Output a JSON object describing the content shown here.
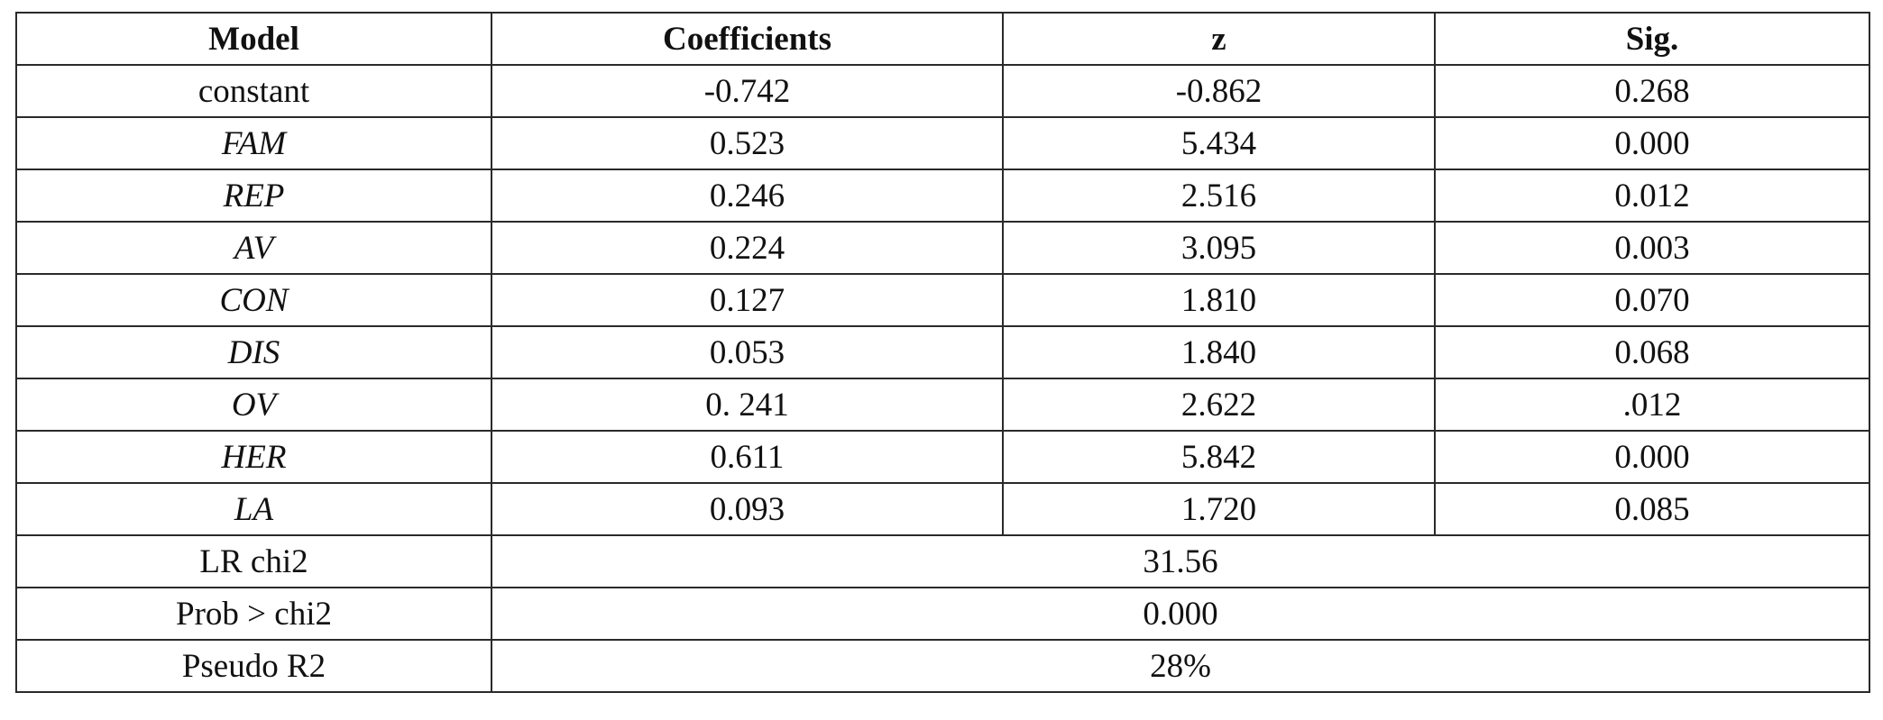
{
  "table": {
    "headers": [
      "Model",
      "Coefficients",
      "z",
      "Sig."
    ],
    "rows": [
      {
        "model": "constant",
        "coef": "-0.742",
        "z": "-0.862",
        "sig": "0.268"
      },
      {
        "model": "FAM",
        "coef": "0.523",
        "z": "5.434",
        "sig": "0.000"
      },
      {
        "model": "REP",
        "coef": "0.246",
        "z": "2.516",
        "sig": "0.012"
      },
      {
        "model": "AV",
        "coef": "0.224",
        "z": "3.095",
        "sig": "0.003"
      },
      {
        "model": "CON",
        "coef": "0.127",
        "z": "1.810",
        "sig": "0.070"
      },
      {
        "model": "DIS",
        "coef": "0.053",
        "z": "1.840",
        "sig": "0.068"
      },
      {
        "model": "OV",
        "coef": "0. 241",
        "z": "2.622",
        "sig": ".012"
      },
      {
        "model": "HER",
        "coef": "0.611",
        "z": "5.842",
        "sig": "0.000"
      },
      {
        "model": "LA",
        "coef": "0.093",
        "z": "1.720",
        "sig": "0.085"
      }
    ],
    "summary": [
      {
        "label": "LR chi2",
        "value": "31.56"
      },
      {
        "label": "Prob > chi2",
        "value": "0.000"
      },
      {
        "label": "Pseudo R2",
        "value": "28%"
      }
    ]
  }
}
